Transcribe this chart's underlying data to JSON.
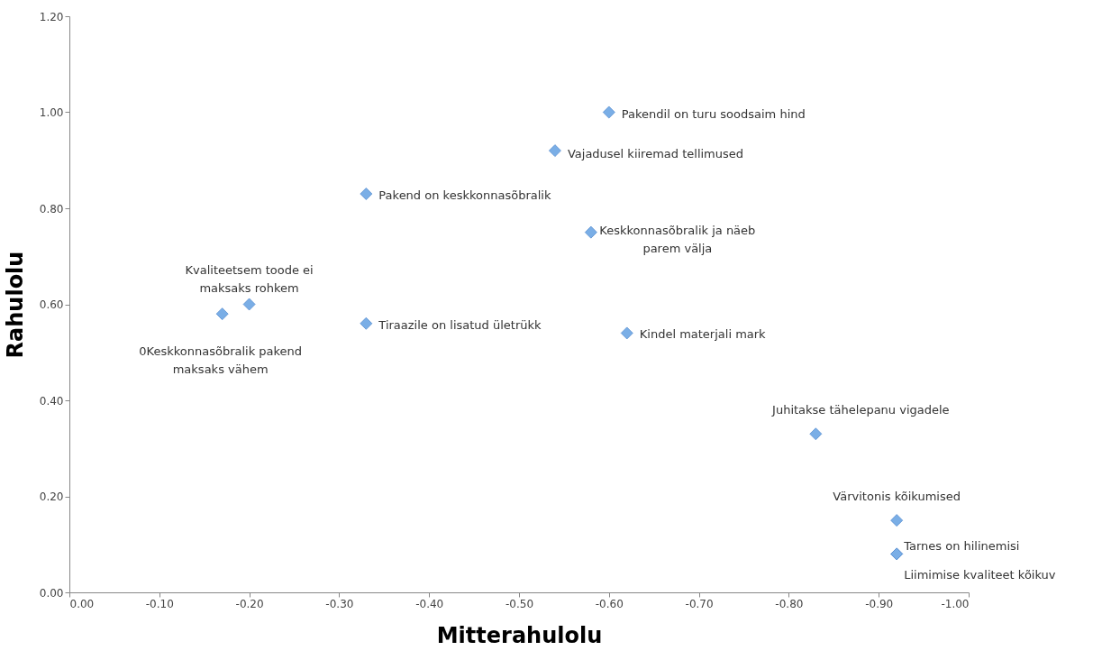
{
  "chart_data": {
    "type": "scatter",
    "xlabel": "Mitterahulolu",
    "ylabel": "Rahulolu",
    "x": [
      -0.6,
      -0.54,
      -0.33,
      -0.58,
      -0.2,
      -0.17,
      -0.33,
      -0.62,
      -0.83,
      -0.92,
      -0.92,
      -0.92
    ],
    "series": [
      {
        "color": "#7aaee6",
        "values": [
          1.0,
          0.92,
          0.83,
          0.75,
          0.6,
          0.58,
          0.56,
          0.54,
          0.33,
          0.15,
          0.08,
          0.08
        ]
      }
    ],
    "marker": "diamond",
    "grid": false,
    "xlim": [
      0,
      -1.0
    ],
    "ylim": [
      0,
      1.2
    ],
    "xticks": [
      {
        "value": 0,
        "label": "0.00"
      },
      {
        "value": -0.1,
        "label": "-0.10"
      },
      {
        "value": -0.2,
        "label": "-0.20"
      },
      {
        "value": -0.3,
        "label": "-0.30"
      },
      {
        "value": -0.4,
        "label": "-0.40"
      },
      {
        "value": -0.5,
        "label": "-0.50"
      },
      {
        "value": -0.6,
        "label": "-0.60"
      },
      {
        "value": -0.7,
        "label": "-0.70"
      },
      {
        "value": -0.8,
        "label": "-0.80"
      },
      {
        "value": -0.9,
        "label": "-0.90"
      },
      {
        "value": -1.0,
        "label": "-1.00"
      }
    ],
    "yticks": [
      {
        "value": 0,
        "label": "0.00"
      },
      {
        "value": 0.2,
        "label": "0.20"
      },
      {
        "value": 0.4,
        "label": "0.40"
      },
      {
        "value": 0.6,
        "label": "0.60"
      },
      {
        "value": 0.8,
        "label": "0.80"
      },
      {
        "value": 1.0,
        "label": "1.00"
      },
      {
        "value": 1.2,
        "label": "1.20"
      }
    ],
    "annotations": [
      {
        "text": "Pakendil on turu soodsaim hind",
        "x": -0.6,
        "y": 1.0
      },
      {
        "text": "Vajadusel kiiremad tellimused",
        "x": -0.54,
        "y": 0.92
      },
      {
        "text": "Pakend on keskkonnasõbralik",
        "x": -0.33,
        "y": 0.83
      },
      {
        "text": "Keskkonnasõbralik ja näeb parem välja",
        "x": -0.58,
        "y": 0.75
      },
      {
        "text": "Kvaliteetsem toode ei maksaks rohkem",
        "x": -0.2,
        "y": 0.6
      },
      {
        "text": "0Keskkonnasõbralik pakend maksaks vähem",
        "x": -0.17,
        "y": 0.58
      },
      {
        "text": "Tiraazile on lisatud ületrükk",
        "x": -0.33,
        "y": 0.56
      },
      {
        "text": "Kindel materjali mark",
        "x": -0.62,
        "y": 0.54
      },
      {
        "text": "Juhitakse tähelepanu vigadele",
        "x": -0.83,
        "y": 0.33
      },
      {
        "text": "Värvitonis kõikumised",
        "x": -0.92,
        "y": 0.15
      },
      {
        "text": "Tarnes on hilinemisi",
        "x": -0.92,
        "y": 0.08
      },
      {
        "text": "Liimimise kvaliteet kõikuv",
        "x": -0.92,
        "y": 0.08
      }
    ]
  }
}
